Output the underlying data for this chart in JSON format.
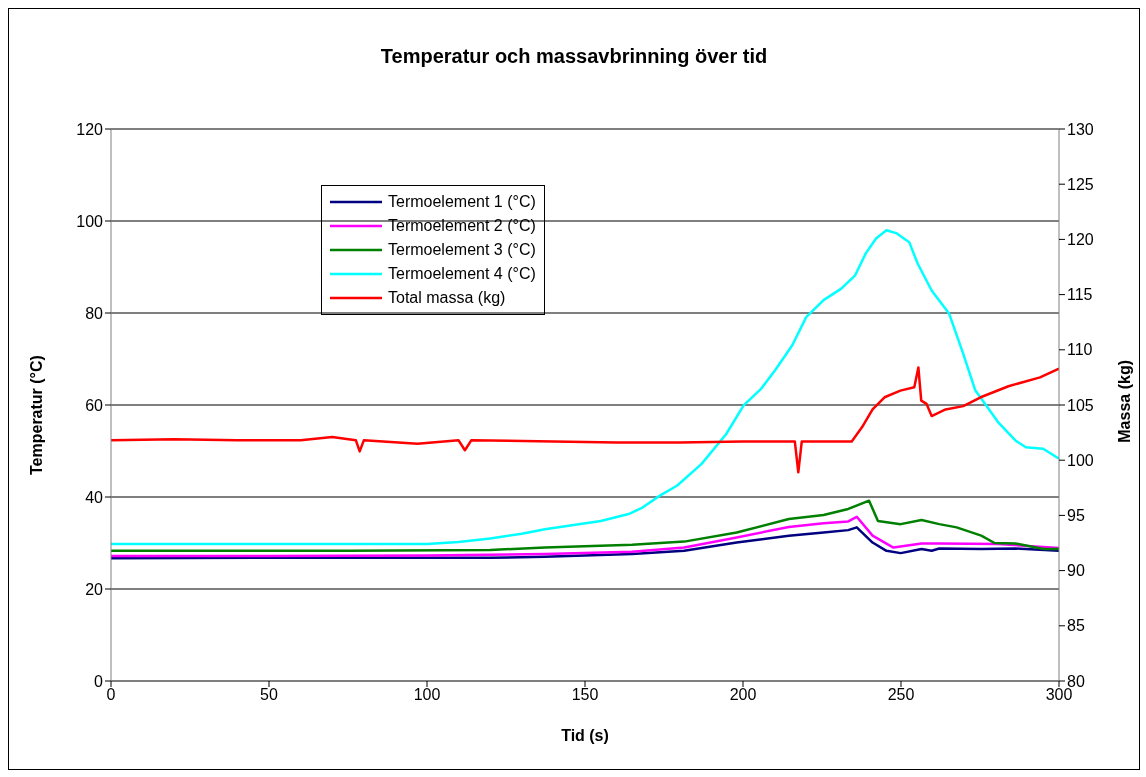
{
  "chart_data": {
    "type": "line",
    "title": "Temperatur och massavbrinning över tid",
    "xlabel": "Tid (s)",
    "ylabel": "Temperatur (°C)",
    "y2label": "Massa (kg)",
    "xlim": [
      0,
      300
    ],
    "xticks": [
      0,
      50,
      100,
      150,
      200,
      250,
      300
    ],
    "ylim": [
      0,
      120
    ],
    "yticks": [
      0,
      20,
      40,
      60,
      80,
      100,
      120
    ],
    "y2lim": [
      80,
      130
    ],
    "y2ticks": [
      80,
      85,
      90,
      95,
      100,
      105,
      110,
      115,
      120,
      125,
      130
    ],
    "grid": "y",
    "legend": "top left",
    "marker": "none",
    "line_style": "solid",
    "series": [
      {
        "name": "Termoelement 1 (°C)",
        "color": "#000080",
        "x": [
          0,
          50,
          100,
          120,
          137.3,
          164.9,
          181.4,
          198,
          214.5,
          225.5,
          233.3,
          236,
          241,
          245.4,
          249.9,
          256.5,
          259.7,
          262.1,
          275.4,
          286.2,
          300
        ],
        "values": [
          26.7,
          26.8,
          26.8,
          26.8,
          27.0,
          27.6,
          28.3,
          30.1,
          31.6,
          32.3,
          32.8,
          33.4,
          30.1,
          28.3,
          27.8,
          28.7,
          28.3,
          28.8,
          28.7,
          28.8,
          28.3
        ]
      },
      {
        "name": "Termoelement 2 (°C)",
        "color": "#ff00ff",
        "x": [
          0,
          50,
          100,
          137.3,
          164.9,
          181.4,
          198,
          214.5,
          225.5,
          233.3,
          236,
          241,
          247.6,
          256.5,
          262.1,
          280.7,
          300
        ],
        "values": [
          27.2,
          27.2,
          27.3,
          27.6,
          28.1,
          29.0,
          31.2,
          33.5,
          34.3,
          34.7,
          35.7,
          31.6,
          29.0,
          29.9,
          29.9,
          29.8,
          28.9
        ]
      },
      {
        "name": "Termoelement 3 (°C)",
        "color": "#008000",
        "x": [
          0,
          75,
          120,
          137.3,
          164.9,
          181.4,
          198,
          214.5,
          225.5,
          233.3,
          239.9,
          242.7,
          249.9,
          256.5,
          262.1,
          267.6,
          275.4,
          279.6,
          286.2,
          295.1,
          300
        ],
        "values": [
          28.3,
          28.3,
          28.5,
          29.0,
          29.6,
          30.3,
          32.3,
          35.2,
          36.1,
          37.4,
          39.2,
          34.8,
          34.1,
          35.0,
          34.1,
          33.4,
          31.6,
          30.0,
          29.9,
          28.7,
          28.7
        ]
      },
      {
        "name": "Termoelement 4 (°C)",
        "color": "#00ffff",
        "x": [
          0,
          100,
          110,
          120,
          130,
          137.3,
          155,
          163.8,
          168.2,
          173.7,
          179.2,
          186.9,
          194.7,
          200.2,
          205.7,
          210.1,
          215.6,
          220,
          225.5,
          231.1,
          235.5,
          238.8,
          242.1,
          245.4,
          248.7,
          252.6,
          255.3,
          259.7,
          265.2,
          269.7,
          273.5,
          280.7,
          286.2,
          289.5,
          295,
          300
        ],
        "values": [
          29.8,
          29.8,
          30.2,
          31.0,
          32.0,
          33.0,
          34.8,
          36.3,
          37.7,
          40.3,
          42.5,
          47.2,
          53.7,
          59.9,
          63.5,
          67.5,
          73.0,
          79.1,
          82.8,
          85.3,
          88.2,
          92.9,
          96.2,
          98.0,
          97.3,
          95.4,
          90.7,
          84.9,
          79.9,
          71.1,
          63.2,
          56.3,
          52.3,
          50.8,
          50.5,
          48.3
        ]
      },
      {
        "name": "Total massa (kg)",
        "color": "#ff0000",
        "axis": "y2",
        "x": [
          0,
          20,
          40,
          60,
          70,
          77.5,
          78.7,
          80,
          97,
          110,
          112,
          114,
          140,
          160,
          180,
          200,
          216.4,
          217.5,
          218.6,
          234.4,
          237.7,
          241,
          244.8,
          249.8,
          254.2,
          255.5,
          256.4,
          258.1,
          259.7,
          264.1,
          269.7,
          275.2,
          284,
          294,
          300
        ],
        "values": [
          101.8,
          101.9,
          101.8,
          101.8,
          102.1,
          101.8,
          100.8,
          101.8,
          101.5,
          101.8,
          100.9,
          101.8,
          101.7,
          101.6,
          101.6,
          101.7,
          101.7,
          98.9,
          101.7,
          101.7,
          103.0,
          104.6,
          105.7,
          106.3,
          106.6,
          108.4,
          105.4,
          105.1,
          104.0,
          104.6,
          104.9,
          105.7,
          106.7,
          107.5,
          108.3
        ]
      }
    ]
  }
}
